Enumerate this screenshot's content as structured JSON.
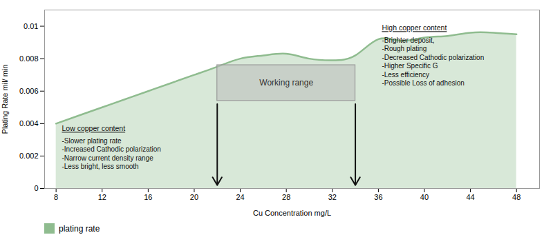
{
  "chart_data": {
    "type": "area",
    "x": [
      8,
      10,
      12,
      14,
      16,
      18,
      20,
      22,
      24,
      26,
      28,
      30,
      32,
      34,
      36,
      38,
      40,
      42,
      44,
      46,
      48
    ],
    "series": [
      {
        "name": "plating rate",
        "color": "#8fbc8f",
        "values": [
          0.004,
          0.0045,
          0.005,
          0.0055,
          0.006,
          0.0065,
          0.007,
          0.0075,
          0.008,
          0.0082,
          0.0083,
          0.008,
          0.0079,
          0.0082,
          0.0092,
          0.0091,
          0.0093,
          0.0094,
          0.0096,
          0.0096,
          0.0095
        ]
      }
    ],
    "xlabel": "Cu Concentration mg/L",
    "ylabel": "Plating Rate mil/ min",
    "xlim": [
      7,
      50
    ],
    "ylim": [
      0,
      0.011
    ],
    "xticks": [
      8,
      12,
      16,
      20,
      24,
      28,
      32,
      36,
      40,
      44,
      48
    ],
    "yticks": [
      0,
      0.002,
      0.004,
      0.006,
      0.008,
      0.01
    ],
    "legend": "lower left",
    "annotations": [
      {
        "type": "box",
        "text": "Working range",
        "x": [
          22,
          34
        ],
        "y": [
          0.0054,
          0.0076
        ]
      },
      {
        "type": "arrow",
        "x": 22,
        "y": [
          0.0052,
          0.0002
        ]
      },
      {
        "type": "arrow",
        "x": 34,
        "y": [
          0.0052,
          0.0002
        ]
      },
      {
        "type": "note",
        "title": "Low copper content",
        "x": 8.5,
        "y": 0.00385,
        "lines": [
          "-Slower plating rate",
          "-Increased Cathodic polarization",
          "-Narrow current density range",
          "-Less bright, less smooth"
        ]
      },
      {
        "type": "note",
        "title": "High copper content",
        "x": 36.3,
        "y": 0.01005,
        "lines": [
          "-Brighter deposit,",
          "-Rough plating",
          "-Decreased Cathodic polarization",
          "-Higher Specific G",
          "-Less efficiency",
          "-Possible Loss of adhesion"
        ]
      }
    ]
  }
}
